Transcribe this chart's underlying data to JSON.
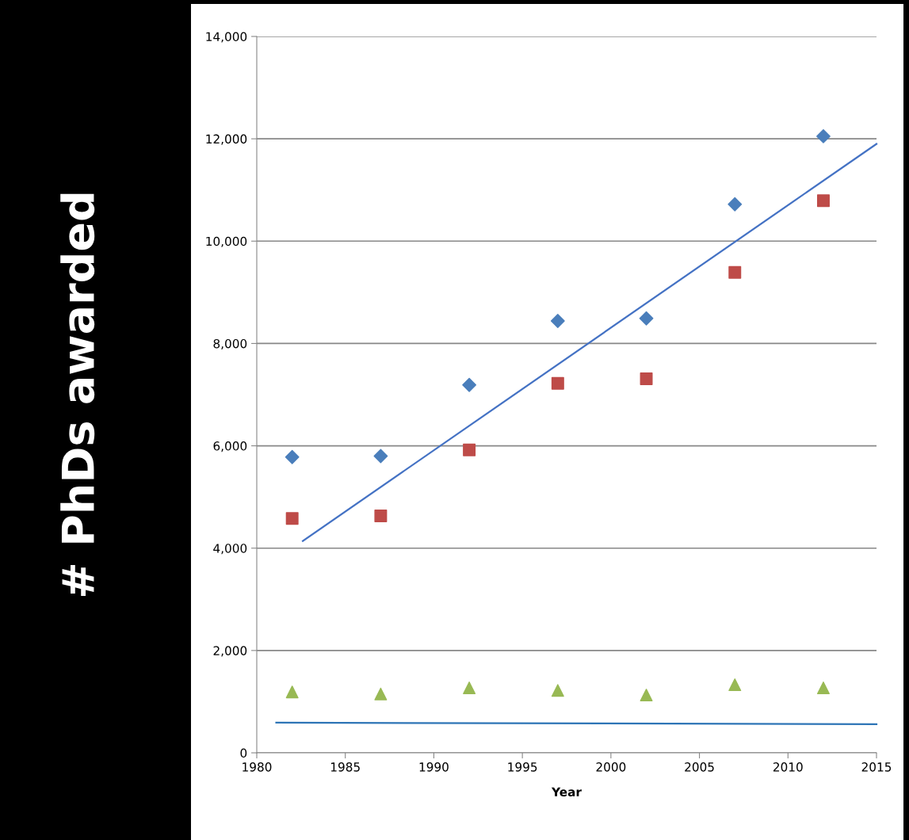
{
  "chart_data": {
    "type": "scatter",
    "xlabel": "Year",
    "ylabel": "# PhDs awarded",
    "x": [
      1982,
      1987,
      1992,
      1997,
      2002,
      2007,
      2012
    ],
    "series": [
      {
        "color": "#4a7ebb",
        "marker": "diamond",
        "values": [
          5780,
          5800,
          7190,
          8440,
          8490,
          10720,
          12050
        ]
      },
      {
        "color": "#be4b48",
        "marker": "square",
        "values": [
          4580,
          4630,
          5920,
          7220,
          7310,
          9390,
          10790
        ]
      },
      {
        "color": "#98b954",
        "marker": "triangle",
        "values": [
          1190,
          1150,
          1270,
          1220,
          1130,
          1330,
          1270
        ]
      },
      {
        "type": "line",
        "color": "#4472c4",
        "x": [
          1982.6,
          2015
        ],
        "values": [
          4140,
          11900
        ]
      },
      {
        "type": "line",
        "color": "#2e75b6",
        "x": [
          1981.1,
          2015
        ],
        "values": [
          590,
          560
        ]
      }
    ],
    "xlim": [
      1980,
      2015
    ],
    "xticks": [
      1980,
      1985,
      1990,
      1995,
      2000,
      2005,
      2010,
      2015
    ],
    "ylim": [
      0,
      14000
    ],
    "yticks": [
      0,
      {
        "value": 2000,
        "label": "2,000"
      },
      {
        "value": 4000,
        "label": "4,000"
      },
      {
        "value": 6000,
        "label": "6,000"
      },
      {
        "value": 8000,
        "label": "8,000"
      },
      {
        "value": 10000,
        "label": "10,000"
      },
      {
        "value": 12000,
        "label": "12,000"
      },
      {
        "value": 14000,
        "label": "14,000"
      }
    ],
    "grid": "y"
  }
}
